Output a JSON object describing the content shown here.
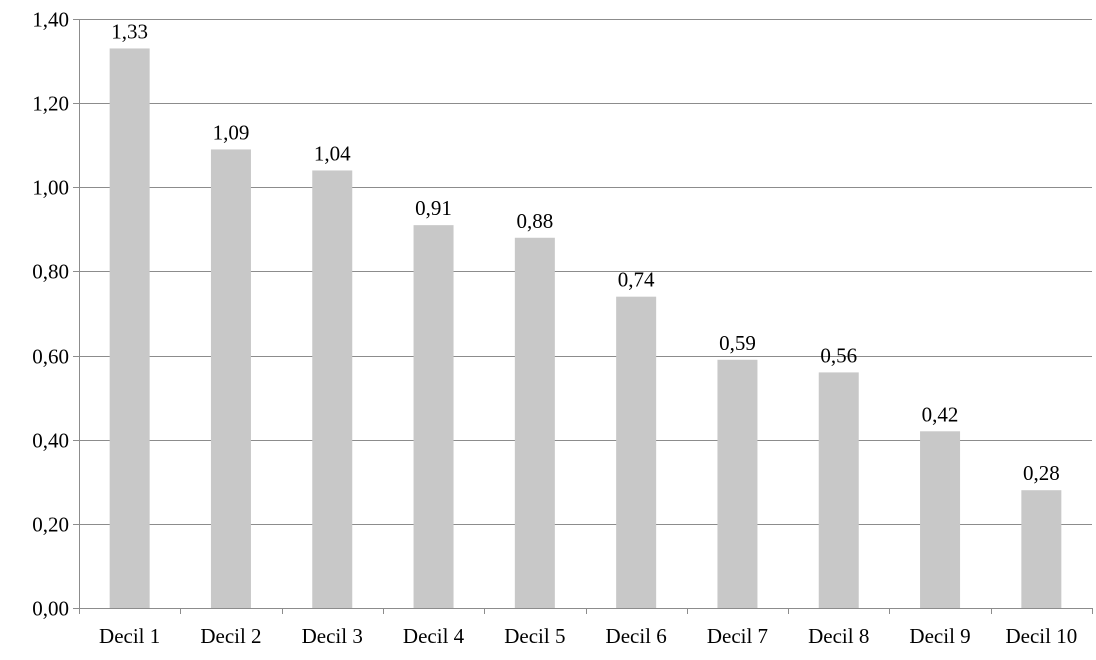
{
  "chart_data": {
    "type": "bar",
    "title": "",
    "xlabel": "",
    "ylabel": "",
    "categories": [
      "Decil 1",
      "Decil 2",
      "Decil 3",
      "Decil 4",
      "Decil 5",
      "Decil 6",
      "Decil 7",
      "Decil 8",
      "Decil 9",
      "Decil 10"
    ],
    "values": [
      1.33,
      1.09,
      1.04,
      0.91,
      0.88,
      0.74,
      0.59,
      0.56,
      0.42,
      0.28
    ],
    "value_labels": [
      "1,33",
      "1,09",
      "1,04",
      "0,91",
      "0,88",
      "0,74",
      "0,59",
      "0,56",
      "0,42",
      "0,28"
    ],
    "ylim": [
      0,
      1.4
    ],
    "yticks": [
      0,
      0.2,
      0.4,
      0.6,
      0.8,
      1.0,
      1.2,
      1.4
    ],
    "ytick_labels": [
      "0,00",
      "0,20",
      "0,40",
      "0,60",
      "0,80",
      "1,00",
      "1,20",
      "1,40"
    ],
    "grid": true,
    "legend": "none",
    "bar_color": "#c8c8c8",
    "grid_color": "#8c8c8c",
    "axis_color": "#8c8c8c"
  }
}
